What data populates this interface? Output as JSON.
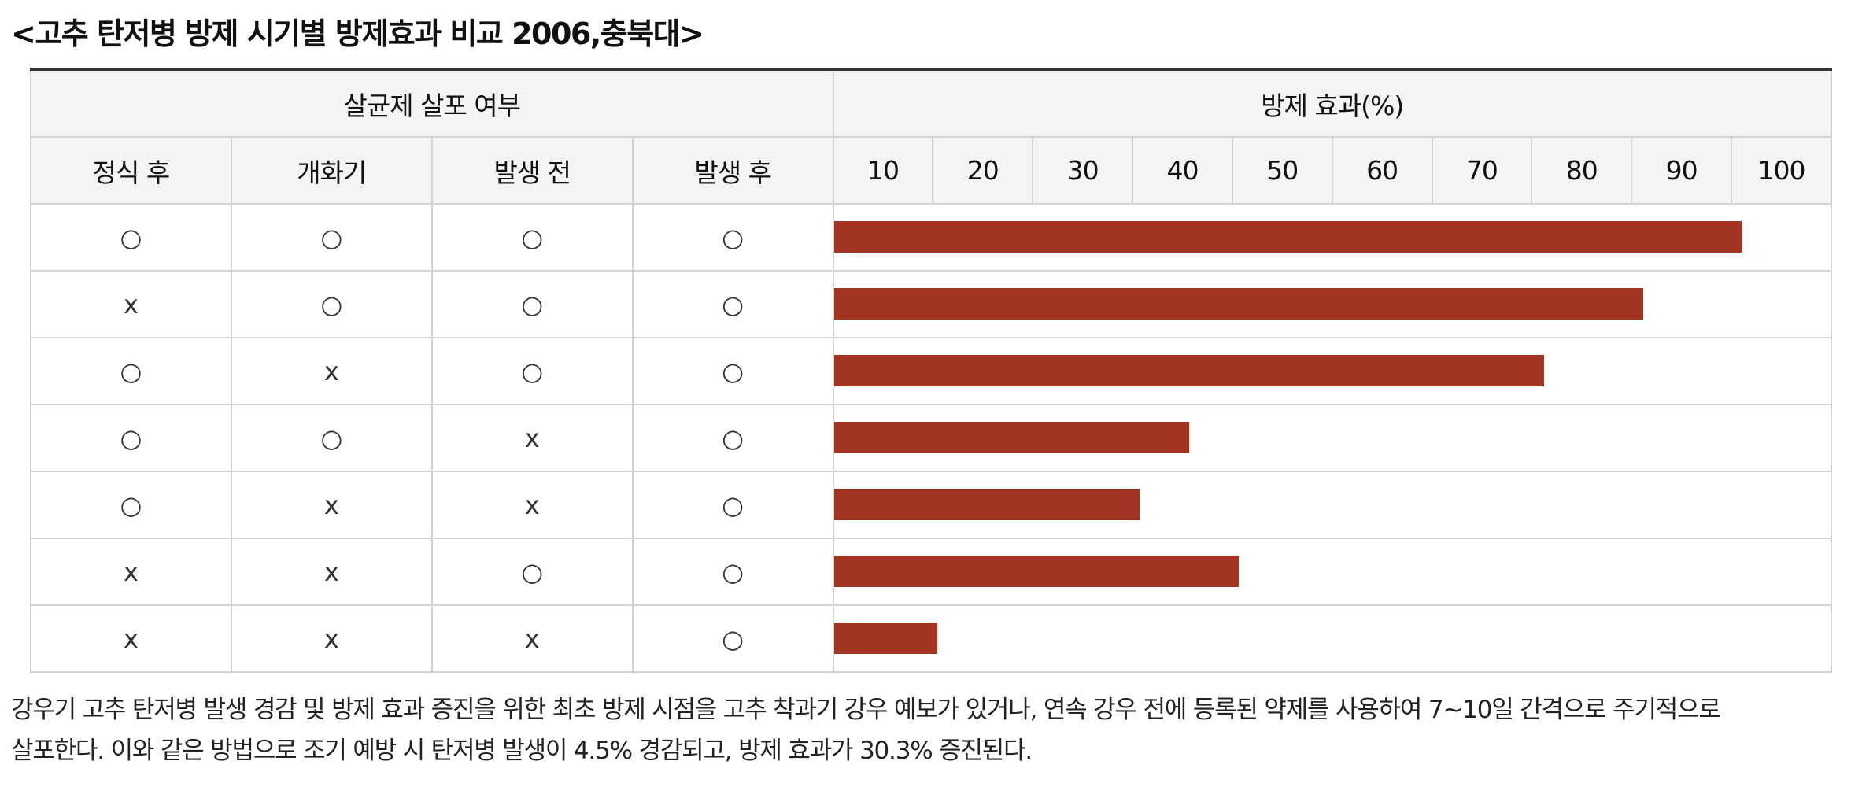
{
  "title": "<고추 탄저병 방제 시기별 방제효과 비교 2006,충북대>",
  "table": {
    "group_header_left": "살균제 살포 여부",
    "group_header_right": "방제 효과(%)",
    "columns": [
      "정식 후",
      "개화기",
      "발생 전",
      "발생 후"
    ]
  },
  "chart_data": {
    "type": "bar",
    "orientation": "horizontal",
    "title": "<고추 탄저병 방제 시기별 방제효과 비교 2006,충북대>",
    "xlabel": "방제 효과(%)",
    "x_ticks": [
      "10",
      "20",
      "30",
      "40",
      "50",
      "60",
      "70",
      "80",
      "90",
      "100"
    ],
    "xlim": [
      0,
      100
    ],
    "grid": false,
    "rows": [
      {
        "marks": [
          "○",
          "○",
          "○",
          "○"
        ],
        "value": 92
      },
      {
        "marks": [
          "x",
          "○",
          "○",
          "○"
        ],
        "value": 82
      },
      {
        "marks": [
          "○",
          "x",
          "○",
          "○"
        ],
        "value": 72
      },
      {
        "marks": [
          "○",
          "○",
          "x",
          "○"
        ],
        "value": 36
      },
      {
        "marks": [
          "○",
          "x",
          "x",
          "○"
        ],
        "value": 31
      },
      {
        "marks": [
          "x",
          "x",
          "○",
          "○"
        ],
        "value": 41
      },
      {
        "marks": [
          "x",
          "x",
          "x",
          "○"
        ],
        "value": 10.5
      }
    ],
    "colors": {
      "bar": "#a33421"
    }
  },
  "description": {
    "line1": "강우기 고추 탄저병 발생 경감 및 방제 효과 증진을 위한 최초 방제 시점을 고추 착과기 강우 예보가 있거나, 연속 강우 전에 등록된 약제를 사용하여 7~10일 간격으로 주기적으로",
    "line2": "살포한다. 이와 같은 방법으로 조기 예방 시 탄저병 발생이 4.5% 경감되고, 방제 효과가 30.3% 증진된다."
  }
}
